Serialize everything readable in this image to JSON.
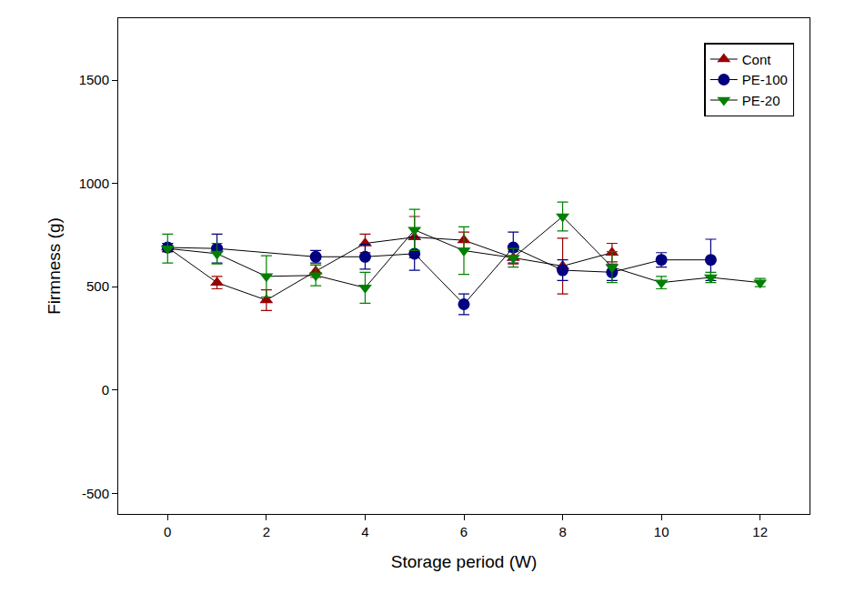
{
  "chart_data": {
    "type": "line",
    "x_label": "Storage period (W)",
    "y_label": "Firmness (g)",
    "x": [
      0,
      1,
      2,
      3,
      4,
      5,
      6,
      7,
      8,
      9,
      10,
      11,
      12
    ],
    "series": [
      {
        "name": "Cont",
        "color": "#990000",
        "marker": "triangle-up",
        "values": [
          690,
          520,
          435,
          575,
          710,
          740,
          725,
          640,
          600,
          665,
          null,
          null,
          null
        ],
        "errors": [
          20,
          30,
          50,
          30,
          45,
          100,
          40,
          30,
          135,
          45,
          null,
          null,
          null
        ]
      },
      {
        "name": "PE-100",
        "color": "#000080",
        "marker": "circle",
        "values": [
          690,
          685,
          null,
          645,
          645,
          660,
          415,
          690,
          580,
          570,
          630,
          630,
          null
        ],
        "errors": [
          20,
          70,
          null,
          30,
          60,
          80,
          50,
          75,
          50,
          40,
          35,
          100,
          null
        ]
      },
      {
        "name": "PE-20",
        "color": "#008000",
        "marker": "triangle-down",
        "values": [
          685,
          660,
          550,
          555,
          495,
          775,
          675,
          640,
          840,
          595,
          520,
          545,
          520
        ],
        "errors": [
          70,
          50,
          100,
          50,
          75,
          100,
          115,
          45,
          70,
          75,
          30,
          25,
          20
        ]
      }
    ],
    "xlim": [
      -1,
      13
    ],
    "xticks": [
      0,
      2,
      4,
      6,
      8,
      10,
      12
    ],
    "ylim": [
      -600,
      1800
    ],
    "yticks": [
      -500,
      0,
      500,
      1000,
      1500
    ],
    "grid": false,
    "legend": "upper right"
  }
}
